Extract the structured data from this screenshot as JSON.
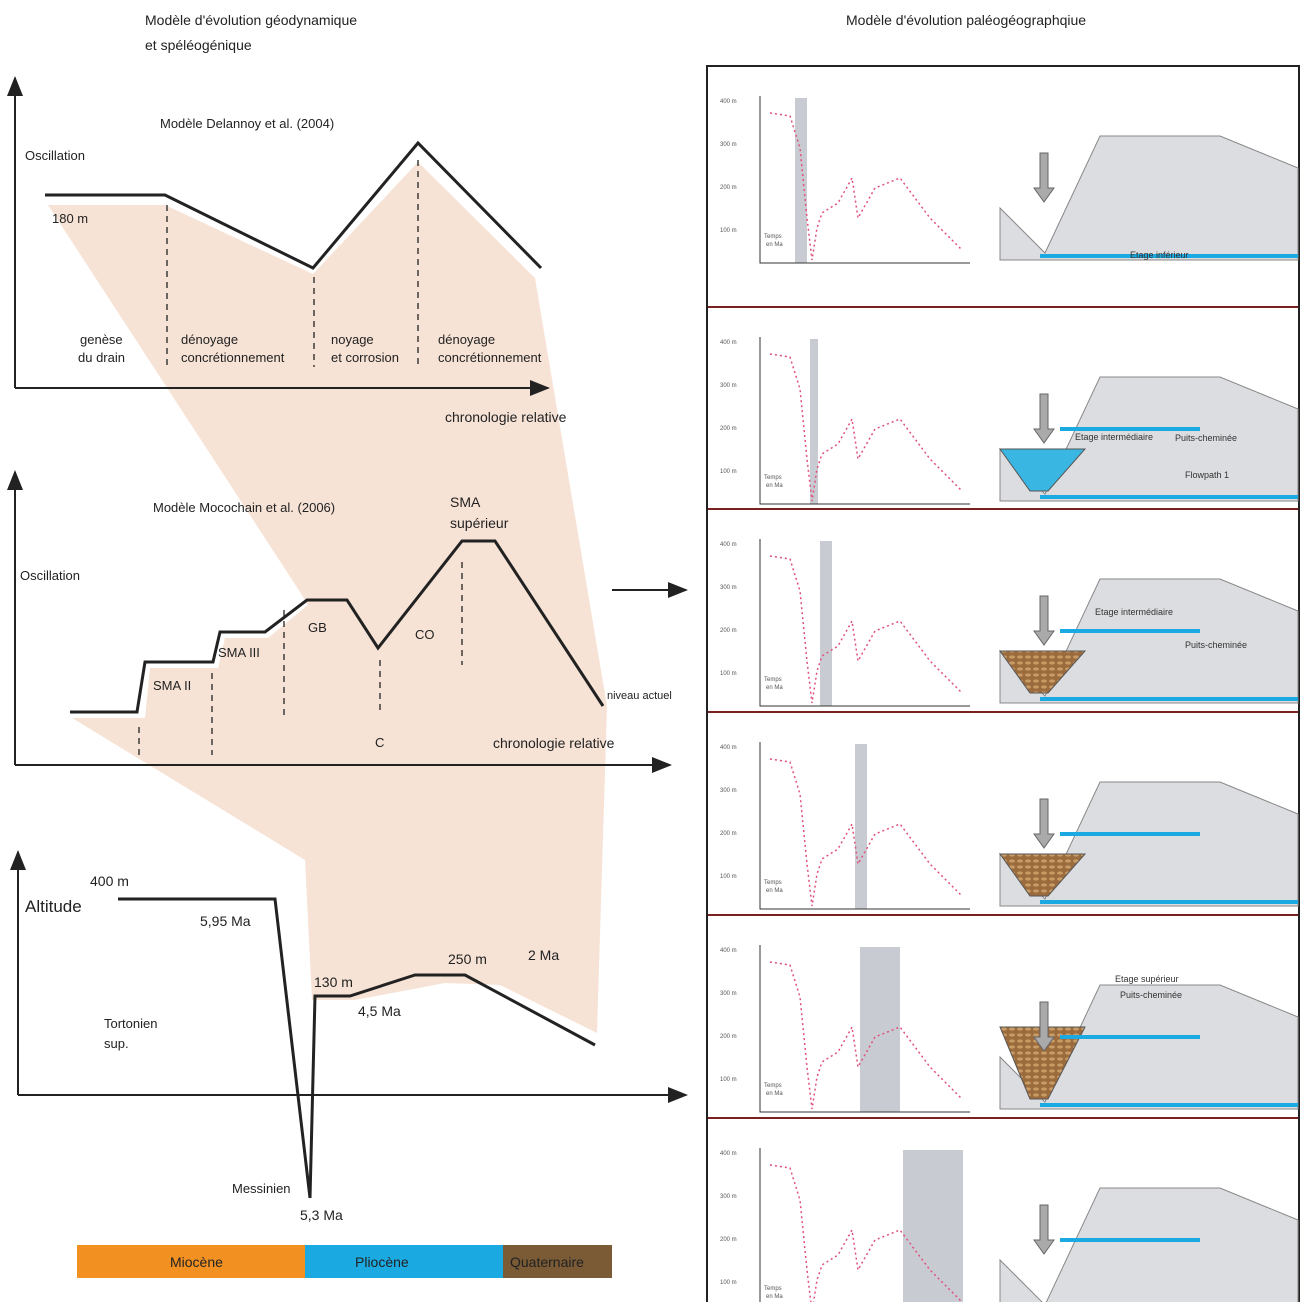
{
  "header": {
    "left_title": [
      "Modèle d'évolution géodynamique",
      "et spéléogénique"
    ],
    "right_title": "Modèle d'évolution paléogéographqiue"
  },
  "diagram1": {
    "title": "Modèle Delannoy et al. (2004)",
    "y_label": "Oscillation",
    "level": "180 m",
    "phases": [
      [
        "genèse",
        "du drain"
      ],
      [
        "dénoyage",
        "concrétionnement"
      ],
      [
        "noyage",
        "et corrosion"
      ],
      [
        "dénoyage",
        "concrétionnement"
      ]
    ],
    "x_label": "chronologie relative"
  },
  "diagram2": {
    "title": "Modèle Mocochain et al. (2006)",
    "y_label": "Oscillation",
    "labels": [
      "SMA II",
      "SMA III",
      "GB",
      "C",
      "CO",
      "niveau actuel"
    ],
    "top_label": [
      "SMA",
      "supérieur"
    ],
    "x_label": "chronologie relative"
  },
  "diagram3": {
    "y_label": "Altitude",
    "labels": [
      "400 m",
      "5,95 Ma",
      "Messinien",
      "5,3 Ma",
      "130 m",
      "4,5 Ma",
      "250 m",
      "2 Ma"
    ],
    "stage": [
      "Tortonien",
      "sup."
    ],
    "periods": [
      "Miocène",
      "Pliocène",
      "Quaternaire"
    ]
  },
  "panel_axis": {
    "yticks": [
      "400 m",
      "300 m",
      "200 m",
      "100 m"
    ],
    "time_label": [
      "Temps",
      "en Ma"
    ]
  },
  "panels": [
    {
      "annotations": [
        "Etage inférieur"
      ]
    },
    {
      "annotations": [
        "Etage intermédiaire",
        "Puits-cheminée",
        "Flowpath 1"
      ]
    },
    {
      "annotations": [
        "Etage intermédiaire",
        "Puits-cheminée"
      ]
    },
    {
      "annotations": []
    },
    {
      "annotations": [
        "Etage supérieur",
        "Puits-cheminée"
      ]
    },
    {
      "annotations": []
    }
  ]
}
